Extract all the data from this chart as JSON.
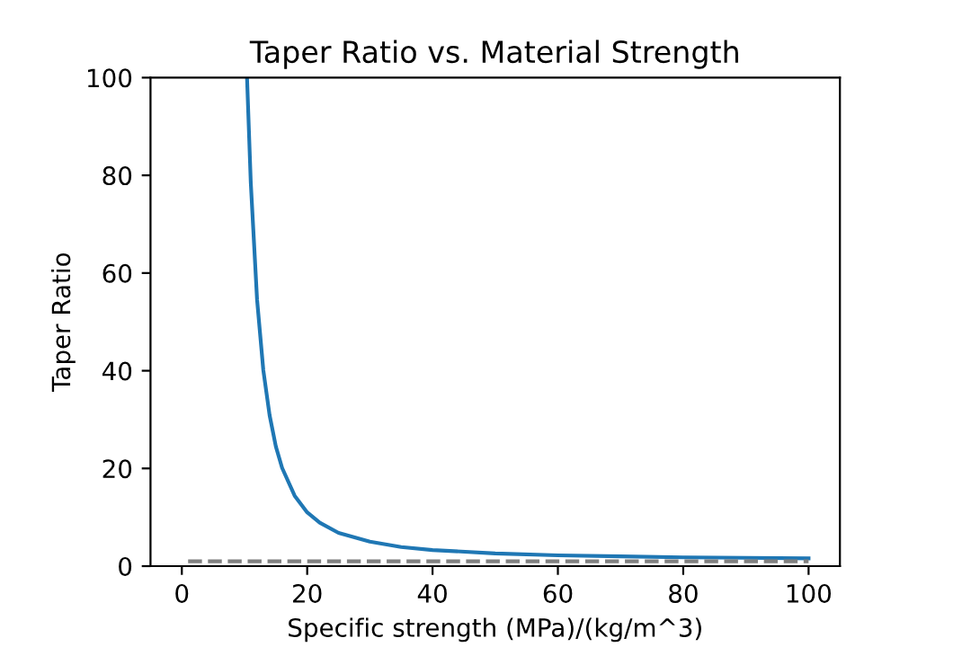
{
  "chart_data": {
    "type": "line",
    "title": "Taper Ratio vs. Material Strength",
    "xlabel": "Specific strength (MPa)/(kg/m^3)",
    "ylabel": "Taper Ratio",
    "xlim": [
      -5,
      105
    ],
    "xticks": [
      0,
      20,
      40,
      60,
      80,
      100
    ],
    "ylim": [
      0,
      100
    ],
    "yticks": [
      0,
      20,
      40,
      60,
      80,
      100
    ],
    "grid": false,
    "legend": false,
    "series": [
      {
        "color": "#1f77b4",
        "line_style": "solid",
        "x": [
          10.4,
          11,
          12,
          13,
          14,
          15,
          16,
          18,
          20,
          22,
          25,
          30,
          35,
          40,
          50,
          60,
          70,
          80,
          90,
          100
        ],
        "values": [
          100,
          78.5,
          54.6,
          40.1,
          30.9,
          24.5,
          20.1,
          14.4,
          11.0,
          8.9,
          6.8,
          5.0,
          3.9,
          3.3,
          2.6,
          2.2,
          2.0,
          1.8,
          1.7,
          1.6
        ]
      },
      {
        "color": "#808080",
        "line_style": "dashed",
        "x": [
          1,
          100
        ],
        "values": [
          1,
          1
        ]
      }
    ]
  }
}
